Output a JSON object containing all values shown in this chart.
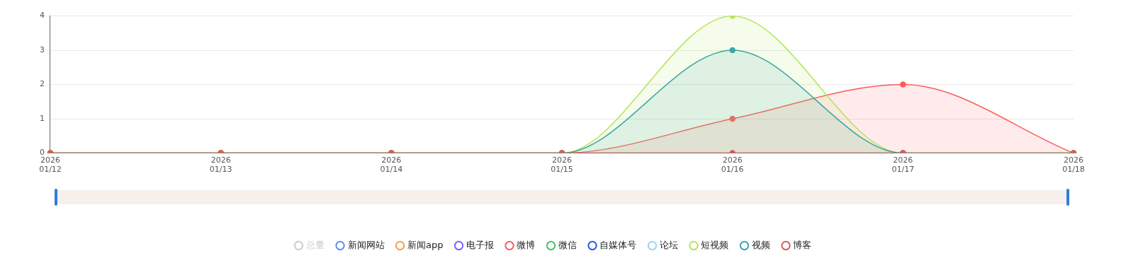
{
  "chart_data": {
    "type": "area",
    "categories": [
      "2026\n01/12",
      "2026\n01/13",
      "2026\n01/14",
      "2026\n01/15",
      "2026\n01/16",
      "2026\n01/17",
      "2026\n01/18"
    ],
    "series": [
      {
        "name": "总量",
        "color": "#cccccc",
        "values": [
          null,
          null,
          null,
          null,
          null,
          null,
          null
        ]
      },
      {
        "name": "新闻网站",
        "color": "#5b8ff9",
        "type": "line",
        "values": [
          null,
          null,
          null,
          null,
          null,
          null,
          null
        ]
      },
      {
        "name": "新闻app",
        "color": "#f6a04d",
        "type": "line",
        "values": [
          null,
          null,
          null,
          null,
          null,
          null,
          null
        ]
      },
      {
        "name": "电子报",
        "color": "#7b61ff",
        "type": "line",
        "values": [
          null,
          null,
          null,
          null,
          null,
          null,
          null
        ]
      },
      {
        "name": "微博",
        "color": "#ff5b5b",
        "values": [
          0,
          0,
          0,
          0,
          1,
          2,
          0
        ]
      },
      {
        "name": "微信",
        "color": "#3dc46a",
        "type": "line",
        "values": [
          null,
          null,
          null,
          null,
          null,
          null,
          null
        ]
      },
      {
        "name": "自媒体号",
        "color": "#2f54eb",
        "type": "line",
        "values": [
          null,
          null,
          null,
          null,
          null,
          null,
          null
        ]
      },
      {
        "name": "论坛",
        "color": "#a0d2f5",
        "type": "line",
        "values": [
          null,
          null,
          null,
          null,
          null,
          null,
          null
        ]
      },
      {
        "name": "短视频",
        "color": "#b2e55e",
        "values": [
          0,
          0,
          0,
          0,
          4,
          0,
          0
        ]
      },
      {
        "name": "视频",
        "color": "#3ba6a6",
        "values": [
          0,
          0,
          0,
          0,
          3,
          0,
          0
        ]
      },
      {
        "name": "博客",
        "color": "#d0605e",
        "type": "line",
        "values": [
          0,
          0,
          0,
          0,
          0,
          0,
          0
        ]
      }
    ],
    "ylim": [
      0,
      4
    ],
    "yticks": [
      0,
      1,
      2,
      3,
      4
    ],
    "grid": "y",
    "legend": "bottom",
    "marker": "circle"
  }
}
